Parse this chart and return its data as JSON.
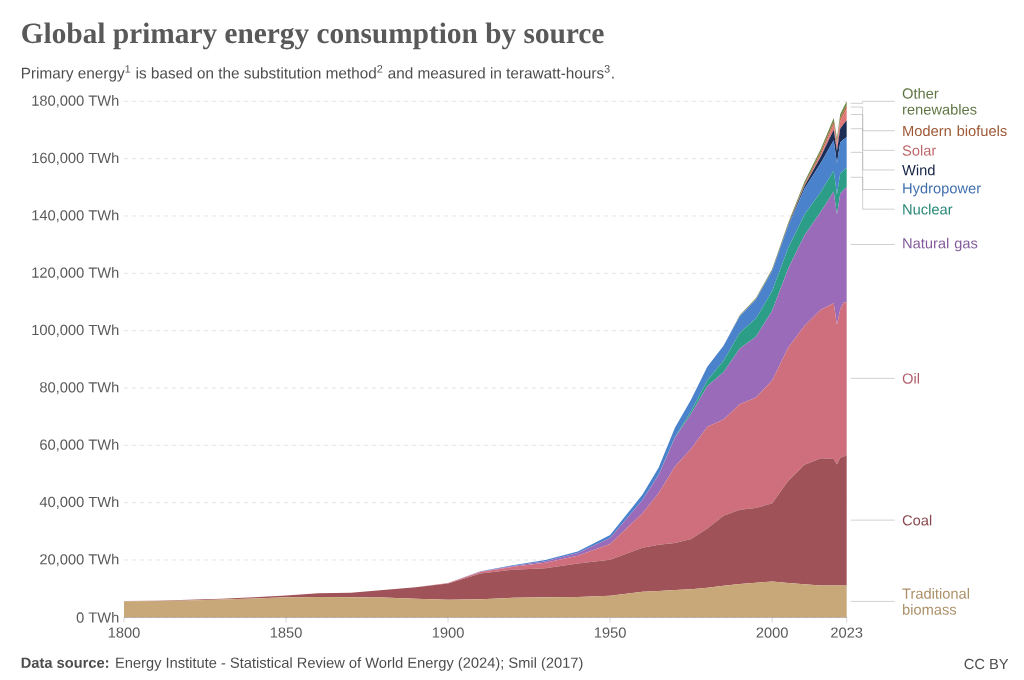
{
  "chart_data": {
    "type": "area",
    "stacked": true,
    "title": "Global primary energy consumption by source",
    "subtitle": "Primary energy$^{1}$ is based on the substitution method$^{2}$ and measured in terawatt-hours$^{3}$.",
    "annotations": [
      "**Data source:** Energy Institute - Statistical Review of World Energy (2024); Smil (2017)",
      "CC BY"
    ],
    "x": [
      1800,
      1810,
      1820,
      1830,
      1840,
      1850,
      1860,
      1870,
      1880,
      1890,
      1900,
      1910,
      1920,
      1930,
      1940,
      1950,
      1960,
      1965,
      1970,
      1975,
      1980,
      1985,
      1990,
      1995,
      2000,
      2005,
      2010,
      2015,
      2019,
      2020,
      2021,
      2022,
      2023
    ],
    "series": [
      {
        "name": "Traditional biomass",
        "color": "#c8a878",
        "values": [
          5600,
          5700,
          5900,
          6200,
          6600,
          7000,
          7100,
          7000,
          6900,
          6500,
          6100,
          6300,
          6800,
          7000,
          7100,
          7500,
          8900,
          9200,
          9500,
          9800,
          10300,
          11000,
          11600,
          12100,
          12500,
          12000,
          11500,
          11100,
          11100,
          11100,
          11100,
          11100,
          11100
        ]
      },
      {
        "name": "Coal",
        "color": "#a05259",
        "values": [
          100,
          100,
          200,
          300,
          400,
          600,
          1300,
          1600,
          2600,
          4000,
          5700,
          9000,
          9800,
          10100,
          11700,
          12600,
          15400,
          16100,
          16400,
          17500,
          20700,
          24400,
          25900,
          26000,
          27300,
          35600,
          41700,
          44400,
          44100,
          42200,
          44600,
          44900,
          45600
        ]
      },
      {
        "name": "Oil",
        "color": "#cf6f7e",
        "values": [
          0,
          0,
          0,
          0,
          0,
          0,
          0,
          0,
          0,
          0,
          200,
          500,
          1000,
          1900,
          2700,
          5500,
          12000,
          18100,
          26700,
          31500,
          35500,
          33600,
          36800,
          38600,
          42800,
          46600,
          48500,
          51800,
          54400,
          48800,
          51700,
          53700,
          53300
        ]
      },
      {
        "name": "Natural gas",
        "color": "#9a6bb8",
        "values": [
          0,
          0,
          0,
          0,
          0,
          0,
          0,
          0,
          0,
          0,
          0,
          200,
          300,
          600,
          900,
          2100,
          4600,
          6300,
          10000,
          12200,
          14200,
          16500,
          19500,
          21200,
          24300,
          27600,
          31600,
          34200,
          38900,
          38400,
          40300,
          39400,
          40100
        ]
      },
      {
        "name": "Nuclear",
        "color": "#2c9e88",
        "values": [
          0,
          0,
          0,
          0,
          0,
          0,
          0,
          0,
          0,
          0,
          0,
          0,
          0,
          0,
          0,
          0,
          0,
          100,
          200,
          1000,
          2000,
          4000,
          5500,
          6300,
          6900,
          7200,
          7200,
          6900,
          7300,
          7000,
          7100,
          6700,
          6800
        ]
      },
      {
        "name": "Hydropower",
        "color": "#4a82cc",
        "values": [
          0,
          0,
          0,
          0,
          0,
          0,
          0,
          0,
          0,
          0,
          0,
          100,
          300,
          400,
          600,
          1000,
          1900,
          2500,
          3300,
          4000,
          4700,
          5200,
          5700,
          6700,
          7000,
          7600,
          9100,
          10100,
          10600,
          11000,
          10800,
          10900,
          10600
        ]
      },
      {
        "name": "Wind",
        "color": "#1c2e55",
        "values": [
          0,
          0,
          0,
          0,
          0,
          0,
          0,
          0,
          0,
          0,
          0,
          0,
          0,
          0,
          0,
          0,
          0,
          0,
          0,
          0,
          0,
          0,
          0,
          0,
          100,
          300,
          900,
          2200,
          3700,
          4100,
          4800,
          5300,
          5900
        ]
      },
      {
        "name": "Solar",
        "color": "#e0787a",
        "values": [
          0,
          0,
          0,
          0,
          0,
          0,
          0,
          0,
          0,
          0,
          0,
          0,
          0,
          0,
          0,
          0,
          0,
          0,
          0,
          0,
          0,
          0,
          0,
          0,
          0,
          0,
          100,
          700,
          1800,
          2100,
          2600,
          3300,
          4000
        ]
      },
      {
        "name": "Modern biofuels",
        "color": "#b8663d",
        "values": [
          0,
          0,
          0,
          0,
          0,
          0,
          0,
          0,
          0,
          0,
          0,
          0,
          0,
          0,
          0,
          0,
          0,
          0,
          0,
          0,
          0,
          0,
          100,
          100,
          100,
          200,
          600,
          900,
          1000,
          1000,
          1100,
          1100,
          1200
        ]
      },
      {
        "name": "Other renewables",
        "color": "#6d8a4e",
        "values": [
          0,
          0,
          0,
          0,
          0,
          0,
          0,
          0,
          0,
          0,
          0,
          0,
          0,
          0,
          0,
          0,
          0,
          0,
          0,
          0,
          0,
          0,
          300,
          400,
          500,
          600,
          800,
          1100,
          1300,
          1400,
          1400,
          1400,
          1400
        ]
      }
    ],
    "xlim": [
      1800,
      2023
    ],
    "ylim": [
      0,
      180000
    ],
    "xticks": [
      1800,
      1850,
      1900,
      1950,
      2000,
      2023
    ],
    "yticks": [
      {
        "value": 0,
        "label": "0 TWh"
      },
      {
        "value": 20000,
        "label": "20,000 TWh"
      },
      {
        "value": 40000,
        "label": "40,000 TWh"
      },
      {
        "value": 60000,
        "label": "60,000 TWh"
      },
      {
        "value": 80000,
        "label": "80,000 TWh"
      },
      {
        "value": 100000,
        "label": "100,000 TWh"
      },
      {
        "value": 120000,
        "label": "120,000 TWh"
      },
      {
        "value": 140000,
        "label": "140,000 TWh"
      },
      {
        "value": 160000,
        "label": "160,000 TWh"
      },
      {
        "value": 180000,
        "label": "180,000 TWh"
      }
    ],
    "grid": "y",
    "legend": "right"
  }
}
